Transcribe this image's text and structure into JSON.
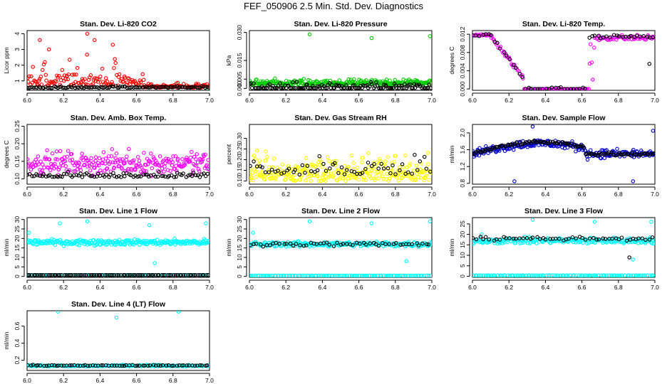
{
  "figure": {
    "title": "FEF_050906  2.5 Min. Std. Dev. Diagnostics"
  },
  "chart_data": [
    {
      "type": "scatter",
      "title": "Stan. Dev. Li-820 CO2",
      "xlabel": "",
      "ylabel": "Licor ppm",
      "xlim": [
        6.0,
        7.0
      ],
      "ylim": [
        0.4,
        4.2
      ],
      "x_ticks": [
        "6.0",
        "6.2",
        "6.4",
        "6.6",
        "6.8",
        "7.0"
      ],
      "y_ticks": [
        "1",
        "2",
        "3",
        "4"
      ],
      "x_tick_values": [
        6.0,
        6.2,
        6.4,
        6.6,
        6.8,
        7.0
      ],
      "y_tick_values": [
        1,
        2,
        3,
        4
      ],
      "series": [
        {
          "name": "colored",
          "color": "#ff0000",
          "pattern": "co2_red"
        },
        {
          "name": "black",
          "color": "#000000",
          "pattern": "co2_black"
        }
      ]
    },
    {
      "type": "scatter",
      "title": "Stan. Dev. Li-820 Pressure",
      "ylabel": "kPa",
      "xlim": [
        6.0,
        7.0
      ],
      "ylim": [
        -0.001,
        0.031
      ],
      "x_ticks": [
        "6.0",
        "6.2",
        "6.4",
        "6.6",
        "6.8",
        "7.0"
      ],
      "y_ticks": [
        "0.000",
        "0.005",
        "0.015",
        "0.030"
      ],
      "x_tick_values": [
        6.0,
        6.2,
        6.4,
        6.6,
        6.8,
        7.0
      ],
      "y_tick_values": [
        0.0,
        0.005,
        0.015,
        0.03
      ],
      "series": [
        {
          "name": "colored",
          "color": "#00cc00",
          "pattern": "press_green"
        },
        {
          "name": "black",
          "color": "#000000",
          "pattern": "press_black"
        }
      ]
    },
    {
      "type": "scatter",
      "title": "Stan. Dev. Li-820 Temp.",
      "ylabel": "degrees C",
      "xlim": [
        6.0,
        7.0
      ],
      "ylim": [
        -0.0003,
        0.0128
      ],
      "x_ticks": [
        "6.0",
        "6.2",
        "6.4",
        "6.6",
        "6.8",
        "7.0"
      ],
      "y_ticks": [
        "0.000",
        "0.004",
        "0.008",
        "0.012"
      ],
      "x_tick_values": [
        6.0,
        6.2,
        6.4,
        6.6,
        6.8,
        7.0
      ],
      "y_tick_values": [
        0.0,
        0.004,
        0.008,
        0.012
      ],
      "series": [
        {
          "name": "colored",
          "color": "#ff00ff",
          "pattern": "temp_mag"
        },
        {
          "name": "black",
          "color": "#000000",
          "pattern": "temp_black"
        }
      ]
    },
    {
      "type": "scatter",
      "title": "Stan. Dev. Amb. Box Temp.",
      "ylabel": "degrees C",
      "xlim": [
        6.0,
        7.0
      ],
      "ylim": [
        0.085,
        0.255
      ],
      "x_ticks": [
        "6.0",
        "6.2",
        "6.4",
        "6.6",
        "6.8",
        "7.0"
      ],
      "y_ticks": [
        "0.10",
        "0.15",
        "0.20",
        "0.25"
      ],
      "x_tick_values": [
        6.0,
        6.2,
        6.4,
        6.6,
        6.8,
        7.0
      ],
      "y_tick_values": [
        0.1,
        0.15,
        0.2,
        0.25
      ],
      "series": [
        {
          "name": "colored",
          "color": "#ff00ff",
          "pattern": "box_mag"
        },
        {
          "name": "black",
          "color": "#000000",
          "pattern": "box_black"
        }
      ]
    },
    {
      "type": "scatter",
      "title": "Stan. Dev. Gas Stream RH",
      "ylabel": "percent",
      "xlim": [
        6.0,
        7.0
      ],
      "ylim": [
        0.085,
        0.365
      ],
      "x_ticks": [
        "6.0",
        "6.2",
        "6.4",
        "6.6",
        "6.8",
        "7.0"
      ],
      "y_ticks": [
        "0.10",
        "0.15",
        "0.20",
        "0.25",
        "0.30"
      ],
      "x_tick_values": [
        6.0,
        6.2,
        6.4,
        6.6,
        6.8,
        7.0
      ],
      "y_tick_values": [
        0.1,
        0.15,
        0.2,
        0.25,
        0.3
      ],
      "series": [
        {
          "name": "colored",
          "color": "#ffff00",
          "pattern": "rh_yellow"
        },
        {
          "name": "black",
          "color": "#000000",
          "pattern": "rh_black"
        }
      ]
    },
    {
      "type": "scatter",
      "title": "Stan. Dev. Sample Flow",
      "ylabel": "ml/min",
      "xlim": [
        6.0,
        7.0
      ],
      "ylim": [
        0.78,
        2.2
      ],
      "x_ticks": [
        "6.0",
        "6.2",
        "6.4",
        "6.6",
        "6.8",
        "7.0"
      ],
      "y_ticks": [
        "0.8",
        "1.2",
        "1.6",
        "2.0"
      ],
      "x_tick_values": [
        6.0,
        6.2,
        6.4,
        6.6,
        6.8,
        7.0
      ],
      "y_tick_values": [
        0.8,
        1.2,
        1.6,
        2.0
      ],
      "series": [
        {
          "name": "colored",
          "color": "#0000cc",
          "pattern": "flow_blue"
        },
        {
          "name": "black",
          "color": "#000000",
          "pattern": "flow_black"
        }
      ]
    },
    {
      "type": "scatter",
      "title": "Stan. Dev. Line 1 Flow",
      "ylabel": "ml/min",
      "xlim": [
        6.0,
        7.0
      ],
      "ylim": [
        -0.5,
        31
      ],
      "x_ticks": [
        "6.0",
        "6.2",
        "6.4",
        "6.6",
        "6.8",
        "7.0"
      ],
      "y_ticks": [
        "0",
        "5",
        "10",
        "15",
        "20",
        "25",
        "30"
      ],
      "x_tick_values": [
        6.0,
        6.2,
        6.4,
        6.6,
        6.8,
        7.0
      ],
      "y_tick_values": [
        0,
        5,
        10,
        15,
        20,
        25,
        30
      ],
      "series": [
        {
          "name": "colored",
          "color": "#00ffff",
          "pattern": "line1_cyan"
        },
        {
          "name": "black",
          "color": "#000000",
          "pattern": "line1_black"
        }
      ]
    },
    {
      "type": "scatter",
      "title": "Stan. Dev. Line 2 Flow",
      "ylabel": "ml/min",
      "xlim": [
        6.0,
        7.0
      ],
      "ylim": [
        -0.5,
        31
      ],
      "x_ticks": [
        "6.0",
        "6.2",
        "6.4",
        "6.6",
        "6.8",
        "7.0"
      ],
      "y_ticks": [
        "0",
        "5",
        "10",
        "15",
        "20",
        "25",
        "30"
      ],
      "x_tick_values": [
        6.0,
        6.2,
        6.4,
        6.6,
        6.8,
        7.0
      ],
      "y_tick_values": [
        0,
        5,
        10,
        15,
        20,
        25,
        30
      ],
      "series": [
        {
          "name": "colored",
          "color": "#00ffff",
          "pattern": "line2_cyan"
        },
        {
          "name": "black",
          "color": "#000000",
          "pattern": "line2_black"
        }
      ]
    },
    {
      "type": "scatter",
      "title": "Stan. Dev. Line 3 Flow",
      "ylabel": "ml/min",
      "xlim": [
        6.0,
        7.0
      ],
      "ylim": [
        -0.5,
        28
      ],
      "x_ticks": [
        "6.0",
        "6.2",
        "6.4",
        "6.6",
        "6.8",
        "7.0"
      ],
      "y_ticks": [
        "0",
        "5",
        "10",
        "15",
        "20",
        "25"
      ],
      "x_tick_values": [
        6.0,
        6.2,
        6.4,
        6.6,
        6.8,
        7.0
      ],
      "y_tick_values": [
        0,
        5,
        10,
        15,
        20,
        25
      ],
      "series": [
        {
          "name": "colored",
          "color": "#00ffff",
          "pattern": "line3_cyan"
        },
        {
          "name": "black",
          "color": "#000000",
          "pattern": "line3_black"
        }
      ]
    },
    {
      "type": "scatter",
      "title": "Stan. Dev. Line 4 (LT) Flow",
      "ylabel": "ml/min",
      "xlim": [
        6.0,
        7.0
      ],
      "ylim": [
        0.08,
        0.78
      ],
      "x_ticks": [
        "6.0",
        "6.2",
        "6.4",
        "6.6",
        "6.8",
        "7.0"
      ],
      "y_ticks": [
        "0.2",
        "0.4",
        "0.6"
      ],
      "x_tick_values": [
        6.0,
        6.2,
        6.4,
        6.6,
        6.8,
        7.0
      ],
      "y_tick_values": [
        0.2,
        0.4,
        0.6
      ],
      "series": [
        {
          "name": "colored",
          "color": "#00ffff",
          "pattern": "line4_cyan"
        },
        {
          "name": "black",
          "color": "#000000",
          "pattern": "line4_black"
        }
      ]
    }
  ]
}
